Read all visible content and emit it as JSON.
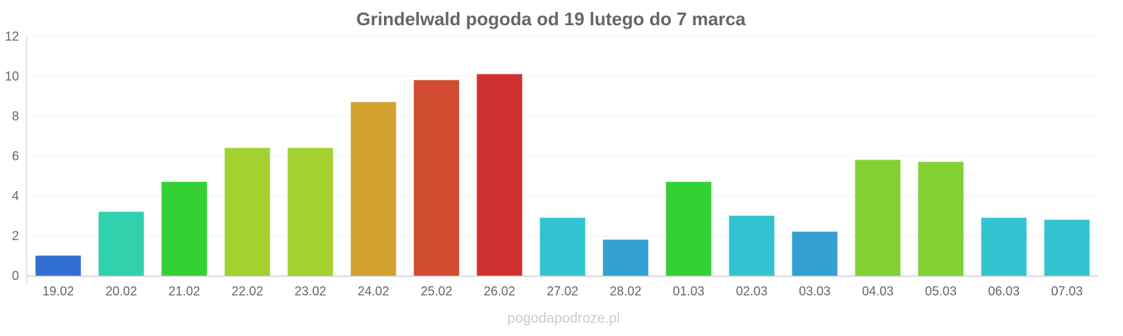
{
  "chart_data": {
    "type": "bar",
    "title": "Grindelwald pogoda od 19 lutego do 7 marca",
    "xlabel": "",
    "ylabel": "",
    "ylim": [
      0,
      12
    ],
    "yticks": [
      0,
      2,
      4,
      6,
      8,
      10,
      12
    ],
    "grid": true,
    "categories": [
      "19.02",
      "20.02",
      "21.02",
      "22.02",
      "23.02",
      "24.02",
      "25.02",
      "26.02",
      "27.02",
      "28.02",
      "01.03",
      "02.03",
      "03.03",
      "04.03",
      "05.03",
      "06.03",
      "07.03"
    ],
    "values": [
      1.0,
      3.2,
      4.7,
      6.4,
      6.4,
      8.7,
      9.8,
      10.1,
      2.9,
      1.8,
      4.7,
      3.0,
      2.2,
      5.8,
      5.7,
      2.9,
      2.8
    ],
    "colors": [
      "#3275dc",
      "#35dcb6",
      "#36dc36",
      "#acdc32",
      "#acdc32",
      "#dcaa32",
      "#dc5032",
      "#dc3232",
      "#35cddc",
      "#35a8dc",
      "#36dc36",
      "#35cddc",
      "#35a8dc",
      "#88dc36",
      "#88dc36",
      "#35cddc",
      "#35cddc"
    ]
  },
  "watermark": "pogodapodroze.pl"
}
